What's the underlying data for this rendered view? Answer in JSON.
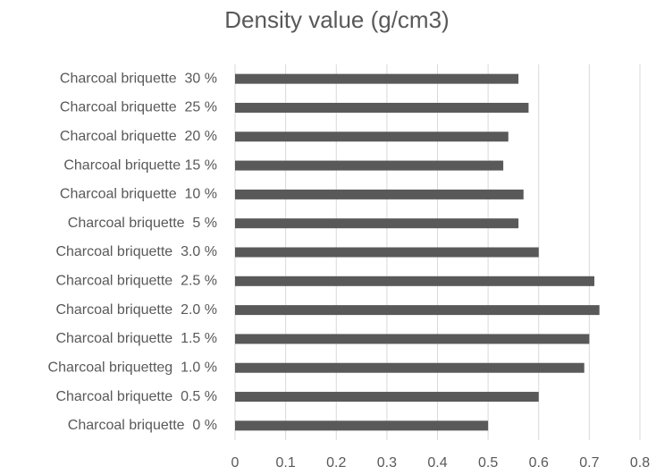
{
  "chart_data": {
    "type": "barh",
    "title": "Density value (g/cm3)",
    "categories": [
      "Charcoal briquette  30 %",
      "Charcoal briquette  25 %",
      "Charcoal briquette  20 %",
      "Charcoal briquette 15 %",
      "Charcoal briquette  10 %",
      "Charcoal briquette  5 %",
      "Charcoal briquette  3.0 %",
      "Charcoal briquette  2.5 %",
      "Charcoal briquette  2.0 %",
      "Charcoal briquette  1.5 %",
      "Charcoal briquetteg  1.0 %",
      "Charcoal briquette  0.5 %",
      "Charcoal briquette  0 %"
    ],
    "values": [
      0.56,
      0.58,
      0.54,
      0.53,
      0.57,
      0.56,
      0.6,
      0.71,
      0.72,
      0.7,
      0.69,
      0.6,
      0.5
    ],
    "color": "#595959",
    "xlim": [
      0,
      0.8
    ],
    "xticks": [
      0,
      0.1,
      0.2,
      0.3,
      0.4,
      0.5,
      0.6,
      0.7,
      0.8
    ],
    "grid": true
  }
}
